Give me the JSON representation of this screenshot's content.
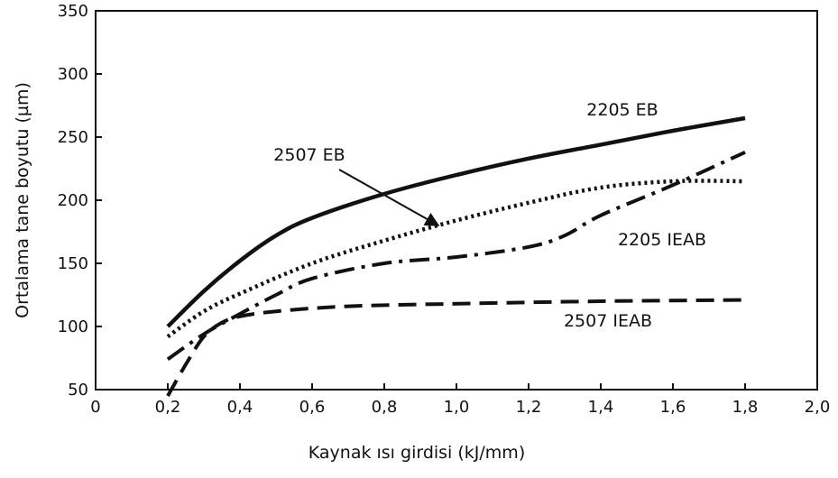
{
  "chart_data": {
    "type": "line",
    "title": "",
    "xlabel": "Kaynak ısı girdisi (kJ/mm)",
    "ylabel": "Ortalama tane boyutu (µm)",
    "xlim": [
      0,
      2.0
    ],
    "ylim": [
      50,
      350
    ],
    "x_ticks": [
      "0",
      "0,2",
      "0,4",
      "0,6",
      "0,8",
      "1,0",
      "1,2",
      "1,4",
      "1,6",
      "1,8",
      "2,0"
    ],
    "y_ticks": [
      "50",
      "100",
      "150",
      "200",
      "250",
      "300",
      "350"
    ],
    "grid": false,
    "series": [
      {
        "name": "2205 EB",
        "style": "solid",
        "x": [
          0.2,
          0.3,
          0.4,
          0.5,
          0.6,
          0.8,
          1.0,
          1.2,
          1.4,
          1.6,
          1.8
        ],
        "y": [
          100,
          128,
          152,
          172,
          186,
          205,
          220,
          233,
          244,
          255,
          265
        ]
      },
      {
        "name": "2507 EB",
        "style": "dotted",
        "x": [
          0.2,
          0.3,
          0.4,
          0.6,
          0.8,
          1.0,
          1.2,
          1.4,
          1.6,
          1.8
        ],
        "y": [
          92,
          112,
          126,
          150,
          168,
          184,
          198,
          210,
          215,
          215
        ]
      },
      {
        "name": "2205 IEAB",
        "style": "dash-dot",
        "x": [
          0.2,
          0.3,
          0.4,
          0.5,
          0.6,
          0.8,
          1.0,
          1.2,
          1.3,
          1.4,
          1.6,
          1.8
        ],
        "y": [
          74,
          94,
          110,
          125,
          138,
          150,
          155,
          163,
          172,
          188,
          212,
          238
        ]
      },
      {
        "name": "2507 IEAB",
        "style": "dashed",
        "x": [
          0.2,
          0.25,
          0.3,
          0.35,
          0.4,
          0.5,
          0.7,
          1.0,
          1.4,
          1.8
        ],
        "y": [
          45,
          70,
          92,
          103,
          108,
          112,
          116,
          118,
          120,
          121
        ]
      }
    ],
    "annotations": [
      {
        "text": "2205 EB",
        "series": "2205 EB"
      },
      {
        "text": "2507 EB",
        "series": "2507 EB",
        "arrow_to": [
          0.95,
          180
        ]
      },
      {
        "text": "2205 IEAB",
        "series": "2205 IEAB"
      },
      {
        "text": "2507 IEAB",
        "series": "2507 IEAB"
      }
    ]
  }
}
